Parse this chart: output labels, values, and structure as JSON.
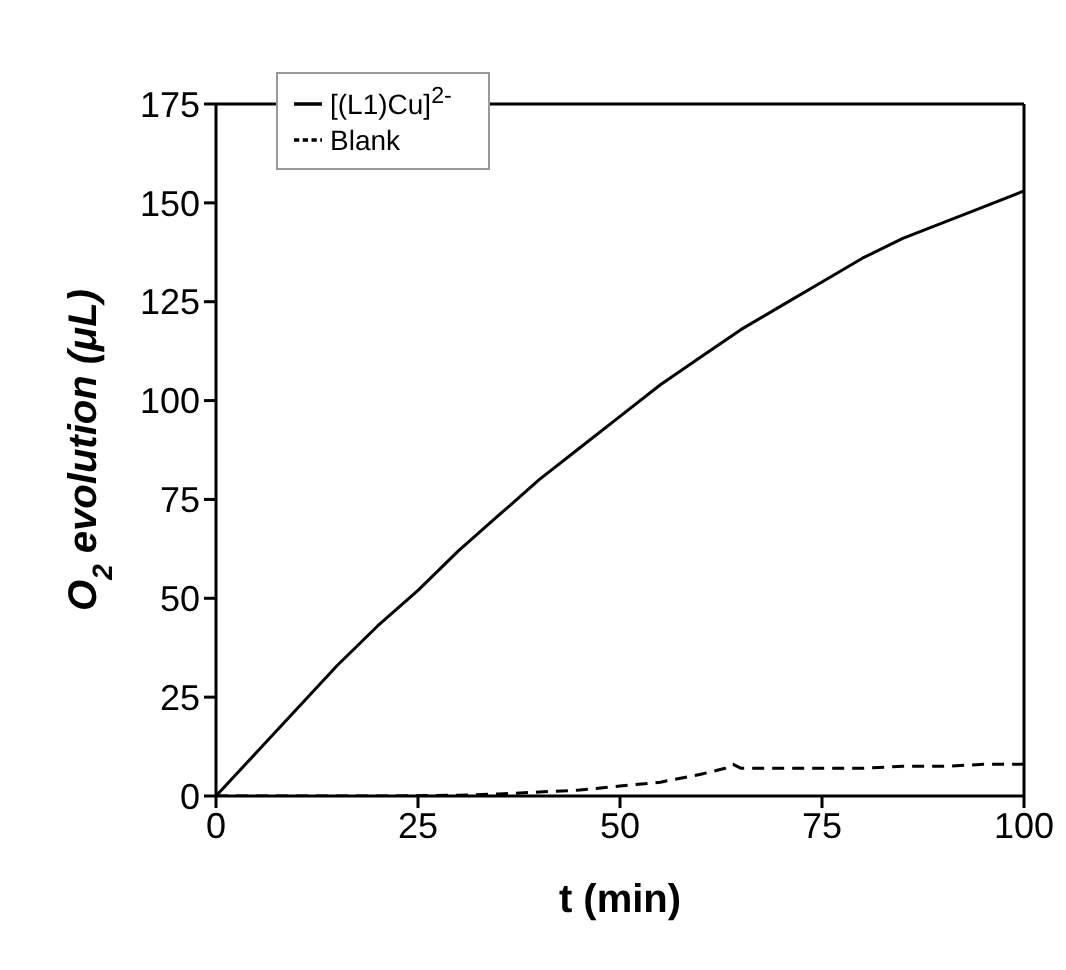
{
  "chart_data": {
    "type": "line",
    "xlabel": "t (min)",
    "ylabel": "O$_{2}$ evolution (μL)",
    "xlim": [
      0,
      100
    ],
    "xticks": [
      0,
      25,
      50,
      75,
      100
    ],
    "ylim": [
      0,
      175
    ],
    "yticks": [
      0,
      25,
      50,
      75,
      100,
      125,
      150,
      175
    ],
    "grid": false,
    "legend": "top left",
    "marker": "none",
    "series": [
      {
        "name": "[(L1)Cu]$^{2-}$",
        "color": "#000000",
        "line_style": "solid",
        "x": [
          0,
          5,
          10,
          15,
          20,
          25,
          30,
          35,
          40,
          45,
          50,
          55,
          60,
          65,
          70,
          75,
          80,
          85,
          90,
          95,
          100
        ],
        "values": [
          0,
          11,
          22,
          33,
          43,
          52,
          62,
          71,
          80,
          88,
          96,
          104,
          111,
          118,
          124,
          130,
          136,
          141,
          145,
          149,
          153
        ]
      },
      {
        "name": "Blank",
        "color": "#000000",
        "line_style": "dashed",
        "x": [
          0,
          5,
          22,
          30,
          35,
          40,
          45,
          50,
          55,
          60,
          63,
          64,
          65,
          70,
          75,
          80,
          85,
          90,
          95,
          100
        ],
        "values": [
          0,
          0,
          0,
          0.2,
          0.5,
          1,
          1.5,
          2.5,
          3.5,
          5.5,
          7,
          8,
          7,
          7,
          7,
          7,
          7.5,
          7.5,
          8,
          8
        ]
      }
    ]
  }
}
